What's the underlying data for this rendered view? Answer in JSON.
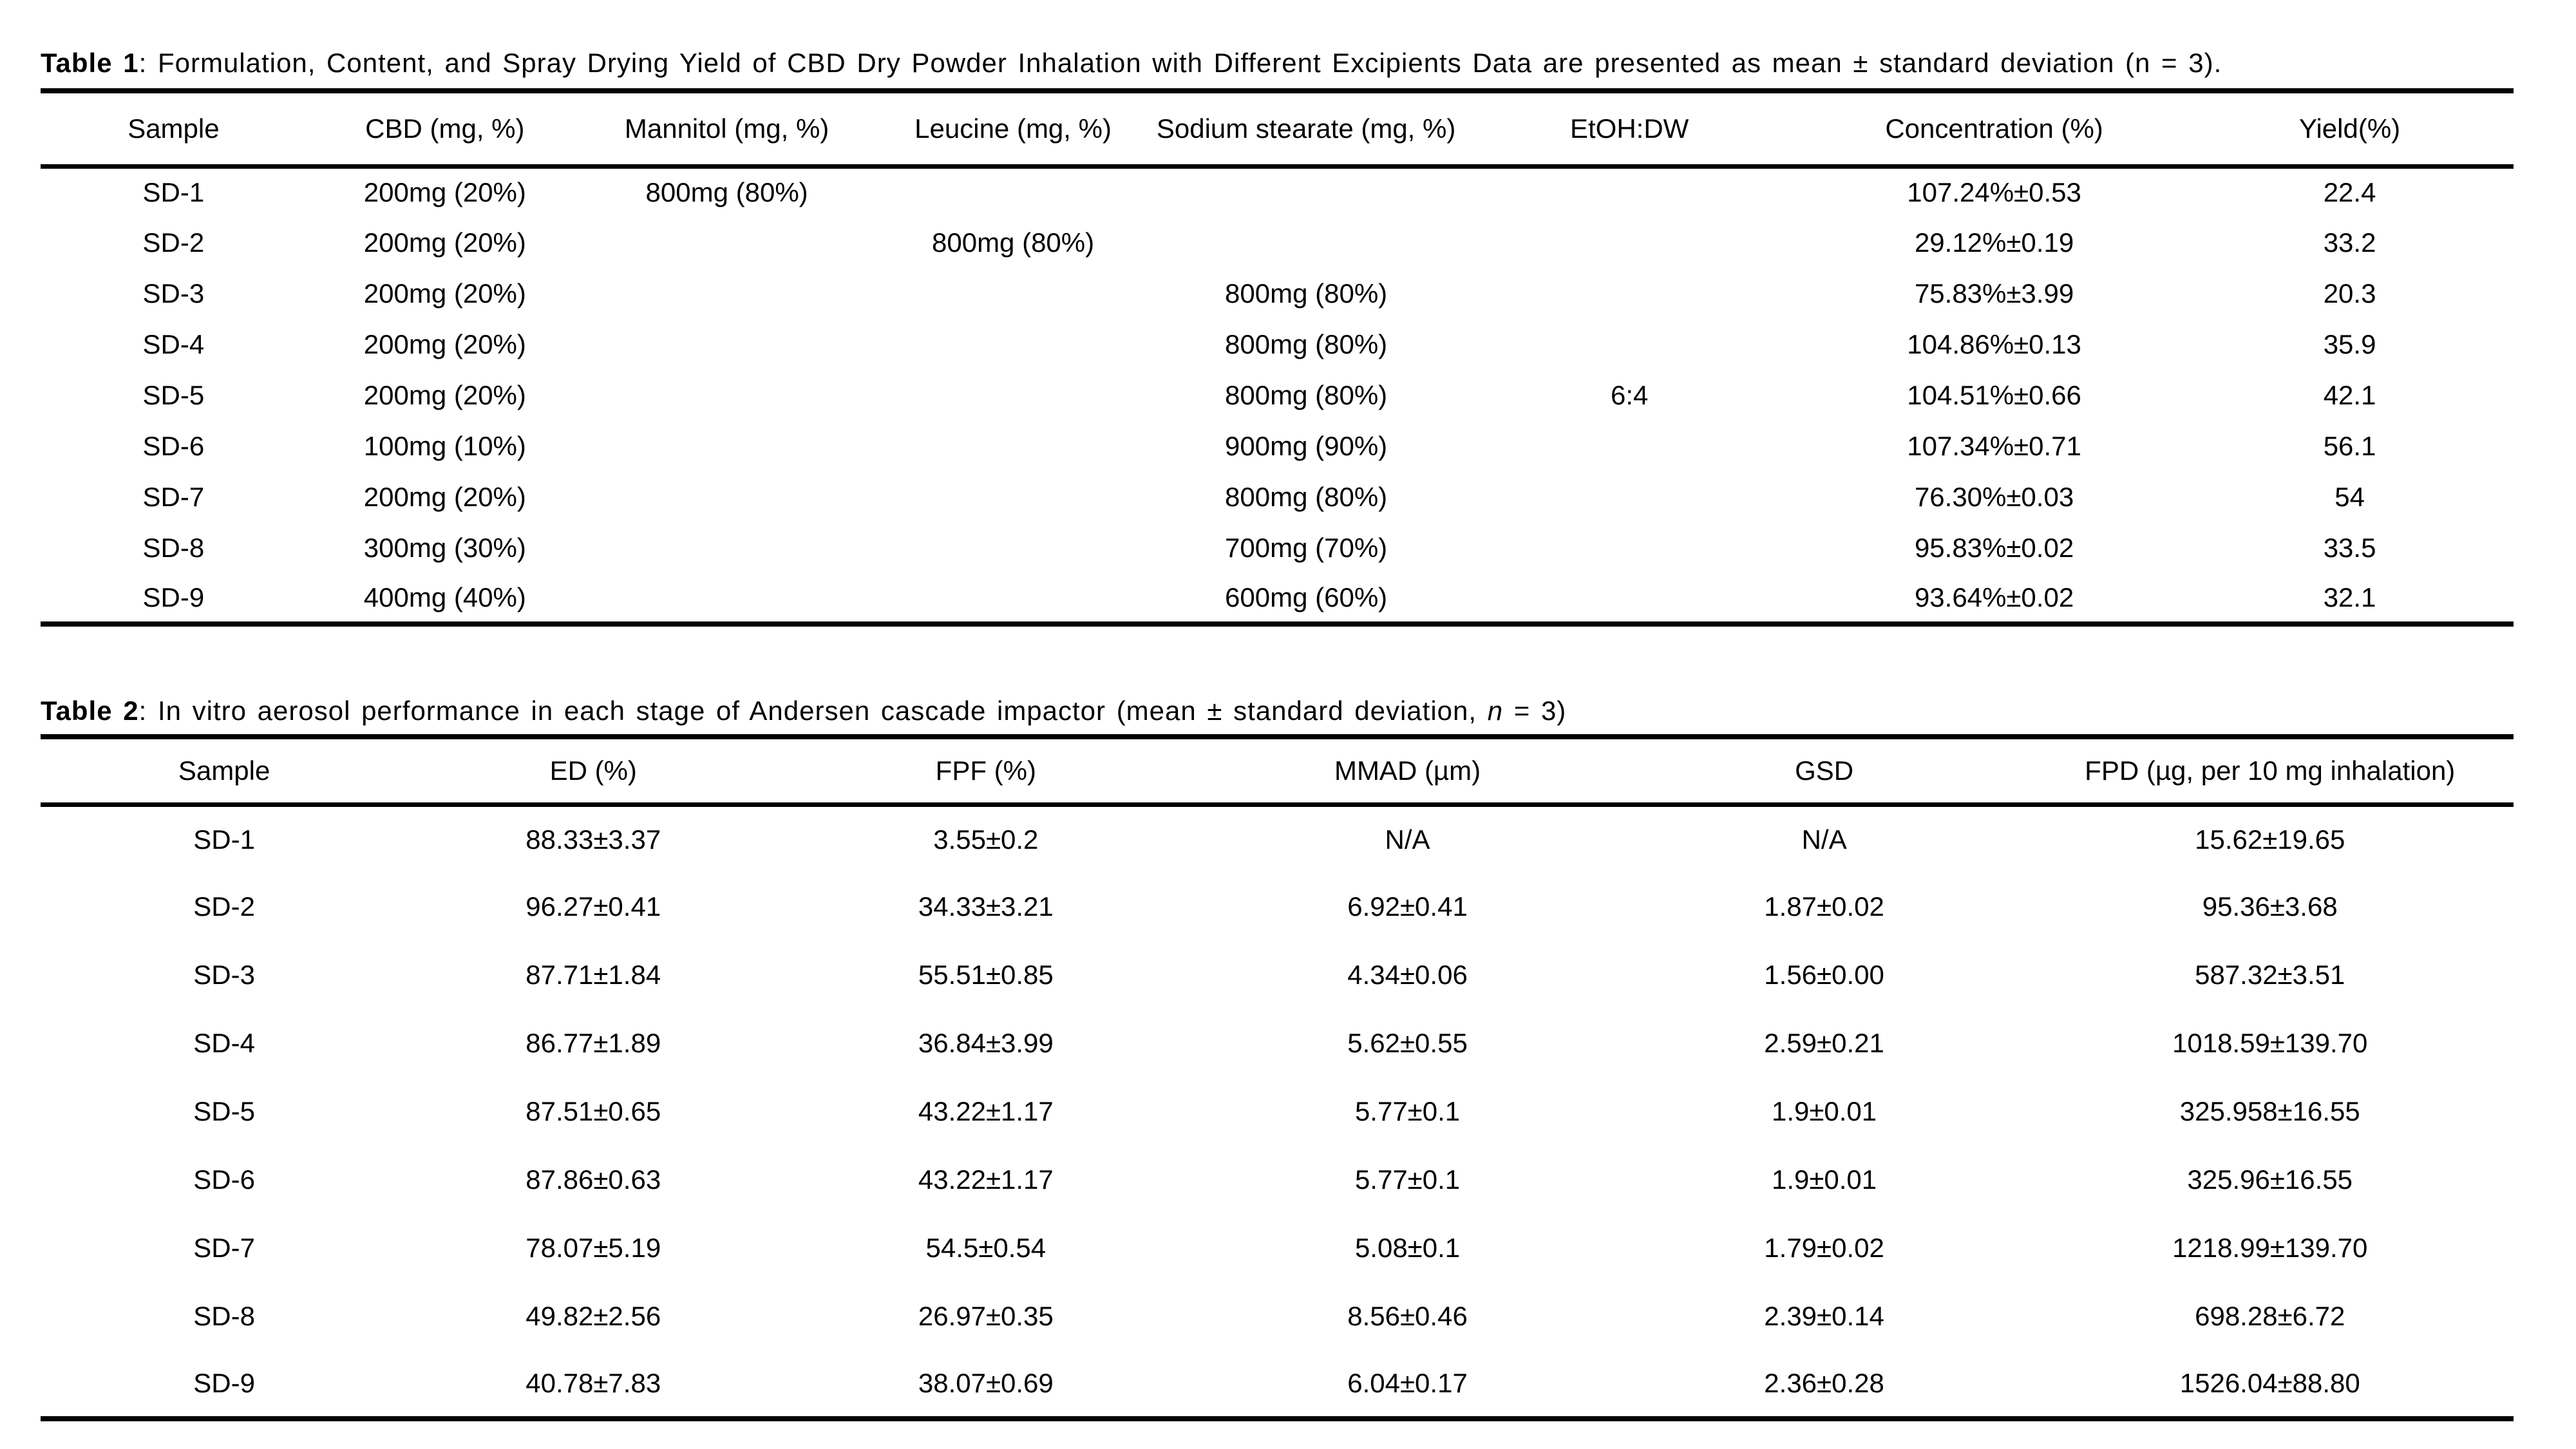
{
  "colors": {
    "background": "#ffffff",
    "text": "#000000",
    "rule": "#000000"
  },
  "table1": {
    "label": "Table 1",
    "caption": ": Formulation, Content, and Spray Drying Yield of CBD Dry Powder Inhalation with Different Excipients Data are presented as mean ± standard deviation (n = 3).",
    "columns": [
      "Sample",
      "CBD (mg, %)",
      "Mannitol (mg, %)",
      "Leucine (mg, %)",
      "Sodium stearate (mg, %)",
      "EtOH:DW",
      "Concentration (%)",
      "Yield(%)"
    ],
    "rows": [
      [
        "SD-1",
        "200mg (20%)",
        "800mg (80%)",
        "",
        "",
        "",
        "107.24%±0.53",
        "22.4"
      ],
      [
        "SD-2",
        "200mg (20%)",
        "",
        "800mg (80%)",
        "",
        "",
        "29.12%±0.19",
        "33.2"
      ],
      [
        "SD-3",
        "200mg (20%)",
        "",
        "",
        "800mg (80%)",
        "",
        "75.83%±3.99",
        "20.3"
      ],
      [
        "SD-4",
        "200mg (20%)",
        "",
        "",
        "800mg (80%)",
        "",
        "104.86%±0.13",
        "35.9"
      ],
      [
        "SD-5",
        "200mg (20%)",
        "",
        "",
        "800mg (80%)",
        "6:4",
        "104.51%±0.66",
        "42.1"
      ],
      [
        "SD-6",
        "100mg (10%)",
        "",
        "",
        "900mg (90%)",
        "",
        "107.34%±0.71",
        "56.1"
      ],
      [
        "SD-7",
        "200mg (20%)",
        "",
        "",
        "800mg (80%)",
        "",
        "76.30%±0.03",
        "54"
      ],
      [
        "SD-8",
        "300mg (30%)",
        "",
        "",
        "700mg (70%)",
        "",
        "95.83%±0.02",
        "33.5"
      ],
      [
        "SD-9",
        "400mg (40%)",
        "",
        "",
        "600mg (60%)",
        "",
        "93.64%±0.02",
        "32.1"
      ]
    ]
  },
  "table2": {
    "label": "Table 2",
    "caption_pre": ": In vitro aerosol performance in each stage of Andersen cascade impactor (mean ± standard deviation, ",
    "caption_italic": "n",
    "caption_post": " = 3)",
    "columns": [
      "Sample",
      "ED (%)",
      "FPF (%)",
      "MMAD (µm)",
      "GSD",
      "FPD (µg, per 10 mg inhalation)"
    ],
    "rows": [
      [
        "SD-1",
        "88.33±3.37",
        "3.55±0.2",
        "N/A",
        "N/A",
        "15.62±19.65"
      ],
      [
        "SD-2",
        "96.27±0.41",
        "34.33±3.21",
        "6.92±0.41",
        "1.87±0.02",
        "95.36±3.68"
      ],
      [
        "SD-3",
        "87.71±1.84",
        "55.51±0.85",
        "4.34±0.06",
        "1.56±0.00",
        "587.32±3.51"
      ],
      [
        "SD-4",
        "86.77±1.89",
        "36.84±3.99",
        "5.62±0.55",
        "2.59±0.21",
        "1018.59±139.70"
      ],
      [
        "SD-5",
        "87.51±0.65",
        "43.22±1.17",
        "5.77±0.1",
        "1.9±0.01",
        "325.958±16.55"
      ],
      [
        "SD-6",
        "87.86±0.63",
        "43.22±1.17",
        "5.77±0.1",
        "1.9±0.01",
        "325.96±16.55"
      ],
      [
        "SD-7",
        "78.07±5.19",
        "54.5±0.54",
        "5.08±0.1",
        "1.79±0.02",
        "1218.99±139.70"
      ],
      [
        "SD-8",
        "49.82±2.56",
        "26.97±0.35",
        "8.56±0.46",
        "2.39±0.14",
        "698.28±6.72"
      ],
      [
        "SD-9",
        "40.78±7.83",
        "38.07±0.69",
        "6.04±0.17",
        "2.36±0.28",
        "1526.04±88.80"
      ]
    ]
  }
}
